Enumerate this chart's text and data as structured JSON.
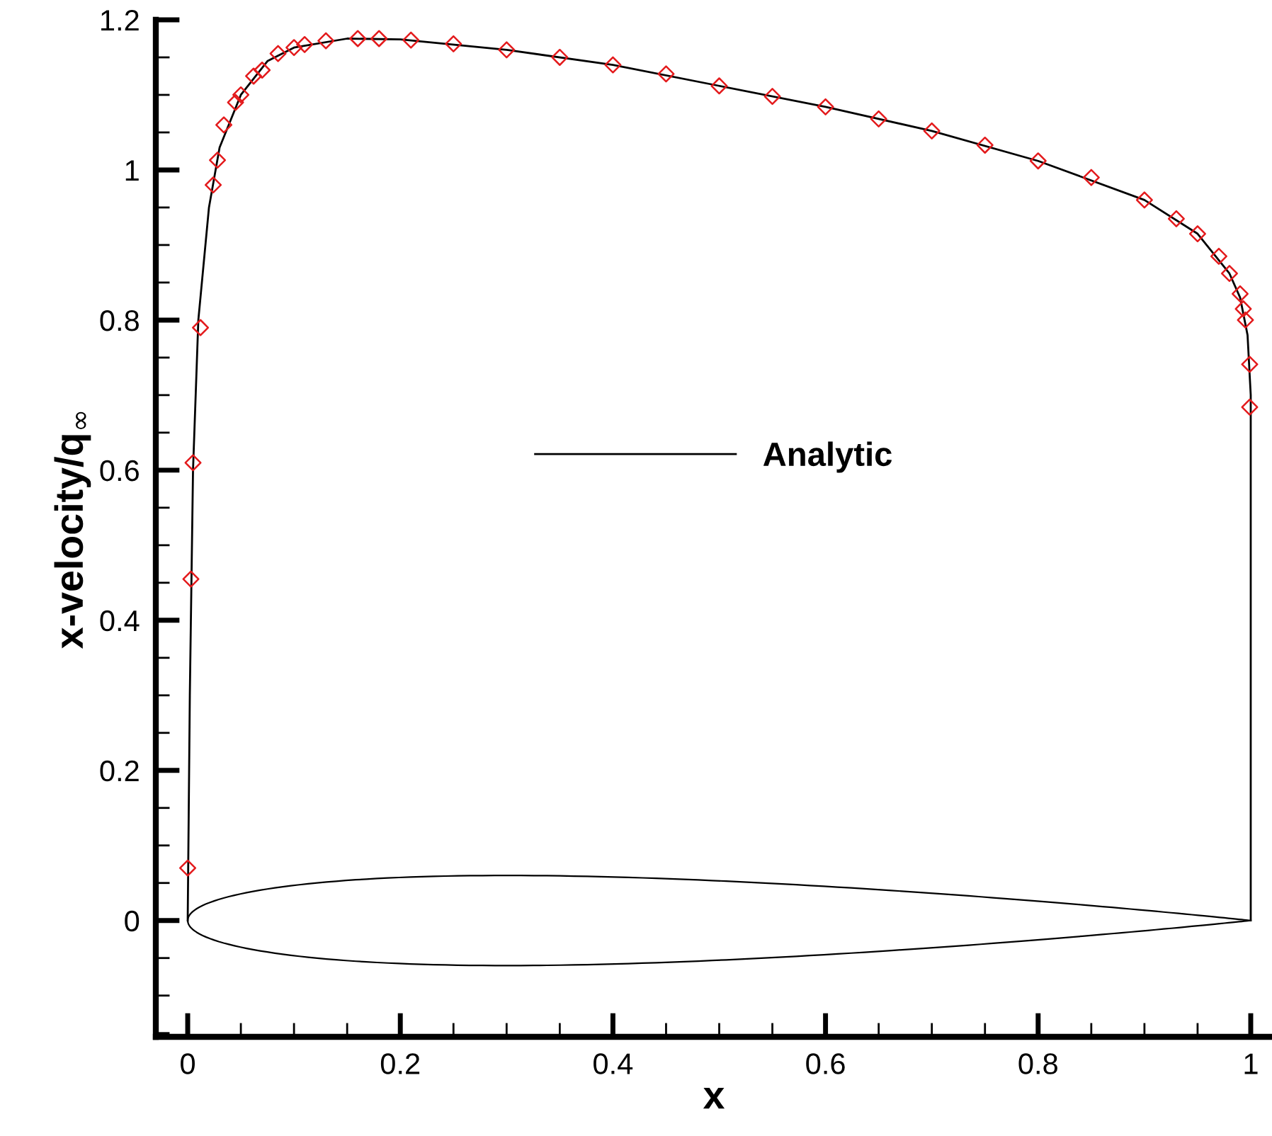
{
  "chart_data": {
    "type": "line",
    "xlabel": "x",
    "ylabel": "x-velocity/q$_{∞}$",
    "xlim": [
      -0.03,
      1.02
    ],
    "ylim": [
      -0.155,
      1.2
    ],
    "xticks": [
      0,
      0.2,
      0.4,
      0.6,
      0.8,
      1,
      {
        "value": 0.05,
        "label": null
      },
      {
        "value": 0.1,
        "label": null
      },
      {
        "value": 0.15,
        "label": null
      },
      {
        "value": 0.25,
        "label": null
      },
      {
        "value": 0.3,
        "label": null
      },
      {
        "value": 0.35,
        "label": null
      },
      {
        "value": 0.45,
        "label": null
      },
      {
        "value": 0.5,
        "label": null
      },
      {
        "value": 0.55,
        "label": null
      },
      {
        "value": 0.65,
        "label": null
      },
      {
        "value": 0.7,
        "label": null
      },
      {
        "value": 0.75,
        "label": null
      },
      {
        "value": 0.85,
        "label": null
      },
      {
        "value": 0.9,
        "label": null
      },
      {
        "value": 0.95,
        "label": null
      }
    ],
    "yticks": [
      0,
      0.2,
      0.4,
      0.6,
      0.8,
      1,
      1.2,
      {
        "value": -0.15,
        "label": null
      },
      {
        "value": -0.1,
        "label": null
      },
      {
        "value": -0.05,
        "label": null
      },
      {
        "value": 0.05,
        "label": null
      },
      {
        "value": 0.1,
        "label": null
      },
      {
        "value": 0.15,
        "label": null
      },
      {
        "value": 0.25,
        "label": null
      },
      {
        "value": 0.3,
        "label": null
      },
      {
        "value": 0.35,
        "label": null
      },
      {
        "value": 0.45,
        "label": null
      },
      {
        "value": 0.5,
        "label": null
      },
      {
        "value": 0.55,
        "label": null
      },
      {
        "value": 0.65,
        "label": null
      },
      {
        "value": 0.7,
        "label": null
      },
      {
        "value": 0.75,
        "label": null
      },
      {
        "value": 0.85,
        "label": null
      },
      {
        "value": 0.9,
        "label": null
      },
      {
        "value": 0.95,
        "label": null
      },
      {
        "value": 1.05,
        "label": null
      },
      {
        "value": 1.1,
        "label": null
      },
      {
        "value": 1.15,
        "label": null
      }
    ],
    "grid": false,
    "legend": "center",
    "series": [
      {
        "name": "Analytic",
        "color": "#000000",
        "marker": "none",
        "line_style": "solid",
        "x": [
          0,
          0.002,
          0.005,
          0.01,
          0.02,
          0.03,
          0.05,
          0.075,
          0.1,
          0.15,
          0.2,
          0.3,
          0.4,
          0.5,
          0.6,
          0.7,
          0.8,
          0.9,
          0.95,
          0.98,
          0.99,
          0.997,
          1.0,
          1.0
        ],
        "values": [
          0,
          0.3,
          0.6,
          0.8,
          0.95,
          1.03,
          1.1,
          1.145,
          1.163,
          1.175,
          1.174,
          1.16,
          1.14,
          1.112,
          1.084,
          1.052,
          1.012,
          0.96,
          0.915,
          0.862,
          0.83,
          0.78,
          0.7,
          0
        ]
      },
      {
        "type": "scatter",
        "color": "#e31a1c",
        "marker": "diamond",
        "x": [
          0.0,
          0.003,
          0.005,
          0.012,
          0.024,
          0.028,
          0.034,
          0.045,
          0.05,
          0.062,
          0.07,
          0.085,
          0.1,
          0.11,
          0.13,
          0.16,
          0.18,
          0.21,
          0.25,
          0.3,
          0.35,
          0.4,
          0.45,
          0.5,
          0.55,
          0.6,
          0.65,
          0.7,
          0.75,
          0.8,
          0.85,
          0.9,
          0.93,
          0.95,
          0.97,
          0.98,
          0.99,
          0.993,
          0.995,
          0.999,
          0.999
        ],
        "values": [
          0.07,
          0.455,
          0.61,
          0.79,
          0.98,
          1.013,
          1.06,
          1.09,
          1.1,
          1.125,
          1.133,
          1.155,
          1.163,
          1.167,
          1.172,
          1.175,
          1.175,
          1.173,
          1.168,
          1.16,
          1.15,
          1.14,
          1.128,
          1.112,
          1.098,
          1.084,
          1.068,
          1.052,
          1.033,
          1.012,
          0.99,
          0.96,
          0.935,
          0.915,
          0.885,
          0.862,
          0.835,
          0.815,
          0.8,
          0.741,
          0.684
        ]
      }
    ]
  }
}
